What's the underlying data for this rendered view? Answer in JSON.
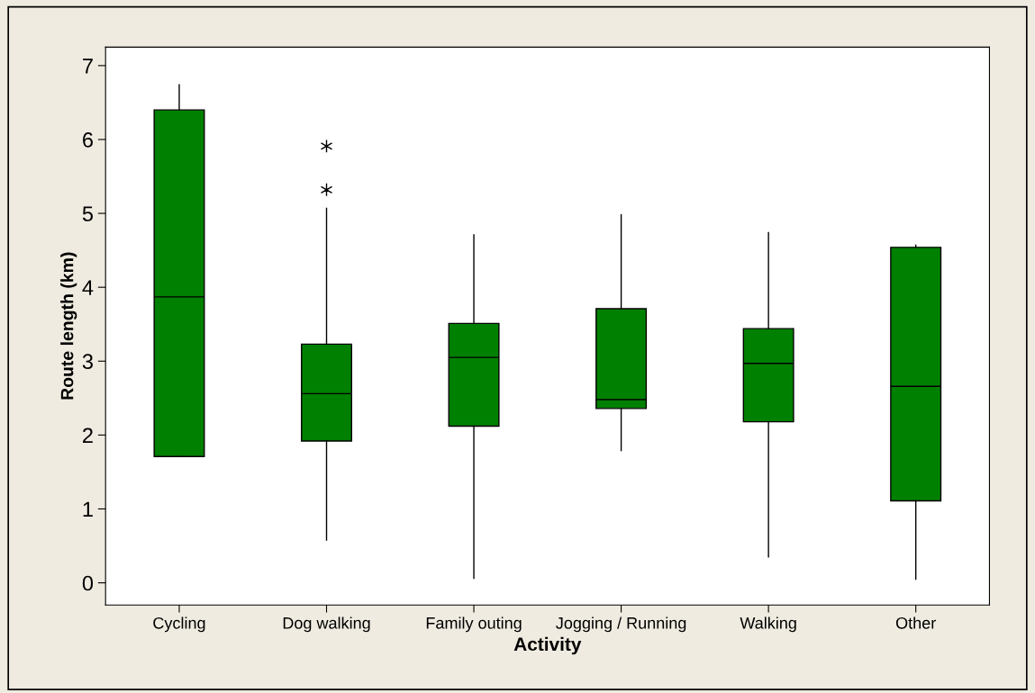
{
  "chart_data": {
    "type": "box",
    "xlabel": "Activity",
    "ylabel": "Route length (km)",
    "categories": [
      "Cycling",
      "Dog walking",
      "Family outing",
      "Jogging / Running",
      "Walking",
      "Other"
    ],
    "color": "#008000",
    "boxes": [
      {
        "low": 1.71,
        "q1": 1.71,
        "median": 3.87,
        "q3": 6.4,
        "high": 6.74
      },
      {
        "low": 0.58,
        "q1": 1.92,
        "median": 2.56,
        "q3": 3.23,
        "high": 5.07,
        "outliers": [
          5.32,
          5.91
        ]
      },
      {
        "low": 0.06,
        "q1": 2.12,
        "median": 3.05,
        "q3": 3.51,
        "high": 4.71
      },
      {
        "low": 1.79,
        "q1": 2.36,
        "median": 2.48,
        "q3": 3.71,
        "high": 4.98
      },
      {
        "low": 0.35,
        "q1": 2.18,
        "median": 2.97,
        "q3": 3.44,
        "high": 4.74
      },
      {
        "low": 0.05,
        "q1": 1.11,
        "median": 2.66,
        "q3": 4.54,
        "high": 4.57
      }
    ],
    "ylim": [
      -0.3,
      7.25
    ],
    "yticks": [
      0,
      1,
      2,
      3,
      4,
      5,
      6,
      7
    ],
    "grid": false,
    "legend": false
  }
}
